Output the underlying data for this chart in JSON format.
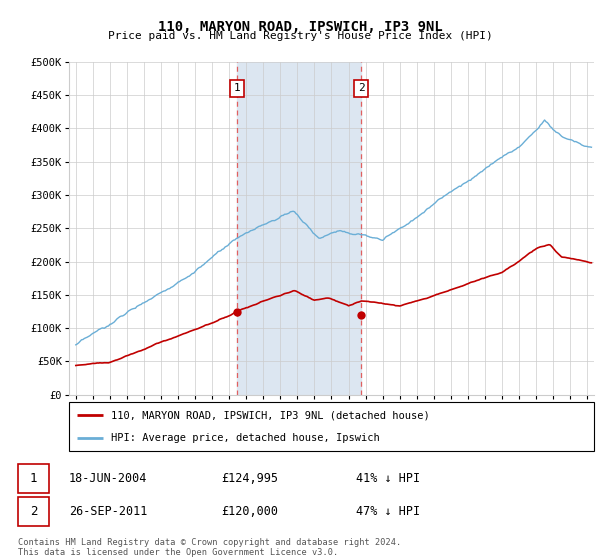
{
  "title": "110, MARYON ROAD, IPSWICH, IP3 9NL",
  "subtitle": "Price paid vs. HM Land Registry's House Price Index (HPI)",
  "ylabel_ticks": [
    "£0",
    "£50K",
    "£100K",
    "£150K",
    "£200K",
    "£250K",
    "£300K",
    "£350K",
    "£400K",
    "£450K",
    "£500K"
  ],
  "ytick_vals": [
    0,
    50000,
    100000,
    150000,
    200000,
    250000,
    300000,
    350000,
    400000,
    450000,
    500000
  ],
  "ylim": [
    0,
    500000
  ],
  "hpi_color": "#6aaed6",
  "price_color": "#c00000",
  "sale1_price": 124995,
  "sale1_date": "18-JUN-2004",
  "sale1_pct": "41% ↓ HPI",
  "sale2_price": 120000,
  "sale2_date": "26-SEP-2011",
  "sale2_pct": "47% ↓ HPI",
  "legend_red_label": "110, MARYON ROAD, IPSWICH, IP3 9NL (detached house)",
  "legend_blue_label": "HPI: Average price, detached house, Ipswich",
  "footnote": "Contains HM Land Registry data © Crown copyright and database right 2024.\nThis data is licensed under the Open Government Licence v3.0.",
  "shade_color": "#dce6f1",
  "vline_color": "#e06060",
  "grid_color": "#cccccc",
  "label_box_color": "#c00000"
}
